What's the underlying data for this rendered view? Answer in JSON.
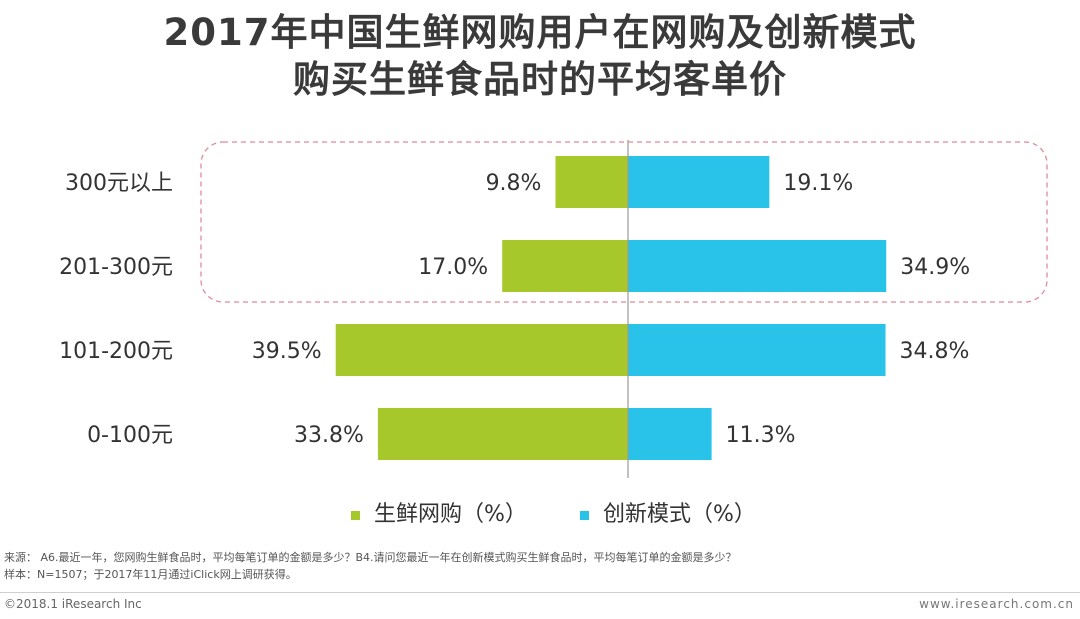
{
  "title_line1": "2017年中国生鲜网购用户在网购及创新模式",
  "title_line2": "购买生鲜食品时的平均客单价",
  "legend": {
    "green_label": "生鲜网购（%）",
    "blue_label": "创新模式（%）"
  },
  "notes": {
    "source": "来源：  A6.最近一年，您网购生鲜食品时，平均每笔订单的金额是多少？B4.请问您最近一年在创新模式购买生鲜食品时，平均每笔订单的金额是多少？",
    "sample": "样本：N=1507；于2017年11月通过iClick网上调研获得。"
  },
  "footer": {
    "copyright": "©2018.1 iResearch Inc",
    "site": "www.iresearch.com.cn"
  },
  "colors": {
    "green": "#a6c82a",
    "blue": "#29c3ea",
    "highlight_border": "#e08a9a"
  },
  "chart_data": {
    "type": "bar",
    "orientation": "horizontal-diverging",
    "categories": [
      "300元以上",
      "201-300元",
      "101-200元",
      "0-100元"
    ],
    "series": [
      {
        "name": "生鲜网购（%）",
        "values": [
          9.8,
          17.0,
          39.5,
          33.8
        ],
        "labels": [
          "9.8%",
          "17.0%",
          "39.5%",
          "33.8%"
        ]
      },
      {
        "name": "创新模式（%）",
        "values": [
          19.1,
          34.9,
          34.8,
          11.3
        ],
        "labels": [
          "19.1%",
          "34.9%",
          "34.8%",
          "11.3%"
        ]
      }
    ],
    "highlighted_categories": [
      "300元以上",
      "201-300元"
    ],
    "legend_position": "bottom"
  }
}
